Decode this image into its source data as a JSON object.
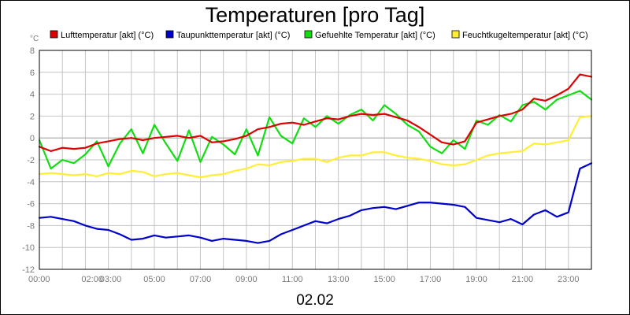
{
  "chart_data": {
    "type": "line",
    "title": "Temperaturen [pro Tag]",
    "unit_label": "°C",
    "date_label": "02.02",
    "ylim": [
      -12,
      8
    ],
    "yticks": [
      8,
      6,
      4,
      2,
      0,
      -2,
      -4,
      -6,
      -8,
      -10,
      -12
    ],
    "xlim_hours": [
      0,
      24
    ],
    "xtick_labels": [
      {
        "hour": 0,
        "label": "00:00"
      },
      {
        "hour": 2.3,
        "label": "02:00"
      },
      {
        "hour": 3.1,
        "label": "03:00"
      },
      {
        "hour": 5,
        "label": "05:00"
      },
      {
        "hour": 7,
        "label": "07:00"
      },
      {
        "hour": 9,
        "label": "09:00"
      },
      {
        "hour": 11,
        "label": "11:00"
      },
      {
        "hour": 13,
        "label": "13:00"
      },
      {
        "hour": 15,
        "label": "15:00"
      },
      {
        "hour": 17,
        "label": "17:00"
      },
      {
        "hour": 19,
        "label": "19:00"
      },
      {
        "hour": 21,
        "label": "21:00"
      },
      {
        "hour": 23,
        "label": "23:00"
      }
    ],
    "grid": true,
    "legend_position": "top",
    "series": [
      {
        "name": "Lufttemperatur [akt] (°C)",
        "color": "#dd0000",
        "x": [
          0,
          0.5,
          1,
          1.5,
          2,
          2.5,
          3,
          3.5,
          4,
          4.5,
          5,
          5.5,
          6,
          6.5,
          7,
          7.5,
          8,
          8.5,
          9,
          9.5,
          10,
          10.5,
          11,
          11.5,
          12,
          12.5,
          13,
          13.5,
          14,
          14.5,
          15,
          15.5,
          16,
          16.5,
          17,
          17.5,
          18,
          18.5,
          19,
          19.5,
          20,
          20.5,
          21,
          21.5,
          22,
          22.5,
          23,
          23.5,
          24
        ],
        "values": [
          -0.8,
          -1.2,
          -0.9,
          -1.0,
          -0.9,
          -0.5,
          -0.3,
          -0.1,
          0.0,
          -0.2,
          0.0,
          0.1,
          0.2,
          0.0,
          0.2,
          -0.4,
          -0.3,
          -0.1,
          0.2,
          0.8,
          1.0,
          1.3,
          1.4,
          1.2,
          1.5,
          1.8,
          1.7,
          2.0,
          2.2,
          2.1,
          2.2,
          1.9,
          1.6,
          1.0,
          0.3,
          -0.4,
          -0.6,
          -0.3,
          1.4,
          1.7,
          2.0,
          2.2,
          2.6,
          3.6,
          3.4,
          3.9,
          4.5,
          5.8,
          5.6
        ]
      },
      {
        "name": "Taupunkttemperatur [akt] (°C)",
        "color": "#0000cc",
        "x": [
          0,
          0.5,
          1,
          1.5,
          2,
          2.5,
          3,
          3.5,
          4,
          4.5,
          5,
          5.5,
          6,
          6.5,
          7,
          7.5,
          8,
          8.5,
          9,
          9.5,
          10,
          10.5,
          11,
          11.5,
          12,
          12.5,
          13,
          13.5,
          14,
          14.5,
          15,
          15.5,
          16,
          16.5,
          17,
          17.5,
          18,
          18.5,
          19,
          19.5,
          20,
          20.5,
          21,
          21.5,
          22,
          22.5,
          23,
          23.5,
          24
        ],
        "values": [
          -7.3,
          -7.2,
          -7.4,
          -7.6,
          -8.0,
          -8.3,
          -8.4,
          -8.8,
          -9.3,
          -9.2,
          -8.9,
          -9.1,
          -9.0,
          -8.9,
          -9.1,
          -9.4,
          -9.2,
          -9.3,
          -9.4,
          -9.6,
          -9.4,
          -8.8,
          -8.4,
          -8.0,
          -7.6,
          -7.8,
          -7.4,
          -7.1,
          -6.6,
          -6.4,
          -6.3,
          -6.5,
          -6.2,
          -5.9,
          -5.9,
          -6.0,
          -6.1,
          -6.3,
          -7.3,
          -7.5,
          -7.7,
          -7.4,
          -7.9,
          -7.0,
          -6.6,
          -7.2,
          -6.8,
          -2.8,
          -2.3
        ]
      },
      {
        "name": "Gefuehlte Temperatur [akt] (°C)",
        "color": "#11dd11",
        "x": [
          0,
          0.5,
          1,
          1.5,
          2,
          2.5,
          3,
          3.5,
          4,
          4.5,
          5,
          5.5,
          6,
          6.5,
          7,
          7.5,
          8,
          8.5,
          9,
          9.5,
          10,
          10.5,
          11,
          11.5,
          12,
          12.5,
          13,
          13.5,
          14,
          14.5,
          15,
          15.5,
          16,
          16.5,
          17,
          17.5,
          18,
          18.5,
          19,
          19.5,
          20,
          20.5,
          21,
          21.5,
          22,
          22.5,
          23,
          23.5,
          24
        ],
        "values": [
          -0.2,
          -2.8,
          -2.0,
          -2.3,
          -1.5,
          -0.3,
          -2.6,
          -0.5,
          0.8,
          -1.4,
          1.2,
          -0.5,
          -2.1,
          0.7,
          -2.2,
          0.1,
          -0.6,
          -1.5,
          0.8,
          -1.6,
          1.9,
          0.2,
          -0.5,
          1.8,
          1.0,
          2.0,
          1.3,
          2.1,
          2.6,
          1.6,
          3.0,
          2.2,
          1.2,
          0.6,
          -0.8,
          -1.4,
          -0.2,
          -1.0,
          1.6,
          1.2,
          2.1,
          1.5,
          3.0,
          3.3,
          2.6,
          3.5,
          3.9,
          4.3,
          3.5
        ]
      },
      {
        "name": "Feuchtkugeltemperatur [akt] (°C)",
        "color": "#ffee33",
        "x": [
          0,
          0.5,
          1,
          1.5,
          2,
          2.5,
          3,
          3.5,
          4,
          4.5,
          5,
          5.5,
          6,
          6.5,
          7,
          7.5,
          8,
          8.5,
          9,
          9.5,
          10,
          10.5,
          11,
          11.5,
          12,
          12.5,
          13,
          13.5,
          14,
          14.5,
          15,
          15.5,
          16,
          16.5,
          17,
          17.5,
          18,
          18.5,
          19,
          19.5,
          20,
          20.5,
          21,
          21.5,
          22,
          22.5,
          23,
          23.5,
          24
        ],
        "values": [
          -3.3,
          -3.2,
          -3.3,
          -3.4,
          -3.3,
          -3.5,
          -3.2,
          -3.3,
          -3.0,
          -3.1,
          -3.5,
          -3.3,
          -3.2,
          -3.4,
          -3.6,
          -3.4,
          -3.3,
          -3.0,
          -2.8,
          -2.4,
          -2.5,
          -2.2,
          -2.1,
          -1.9,
          -1.9,
          -2.2,
          -1.8,
          -1.6,
          -1.6,
          -1.3,
          -1.3,
          -1.6,
          -1.8,
          -1.9,
          -2.1,
          -2.4,
          -2.5,
          -2.4,
          -2.0,
          -1.6,
          -1.4,
          -1.3,
          -1.2,
          -0.5,
          -0.6,
          -0.4,
          -0.2,
          1.9,
          2.0
        ]
      }
    ]
  }
}
